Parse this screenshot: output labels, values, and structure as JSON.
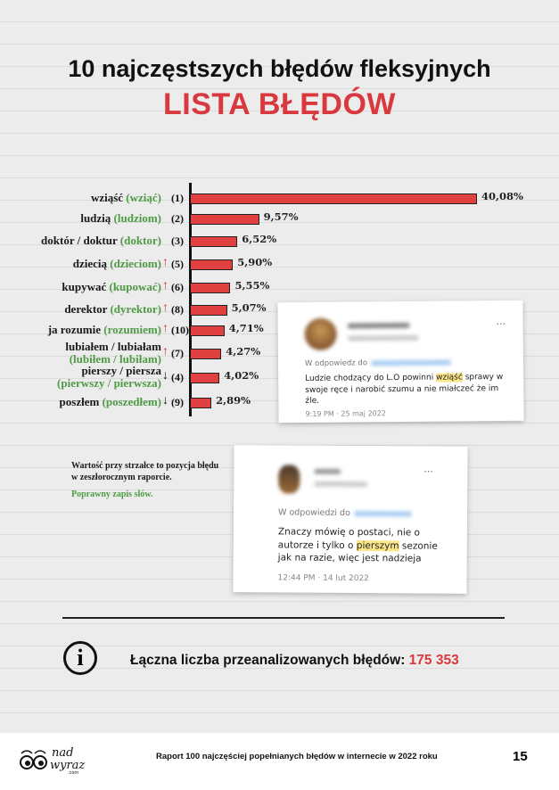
{
  "header": {
    "title": "10 najczęstszych błędów fleksyjnych",
    "subtitle": "LISTA BŁĘDÓW"
  },
  "colors": {
    "accent": "#d8383e",
    "bar": "#e0403f",
    "correct": "#4f9a45",
    "arrow_up": "#d8383e",
    "arrow_down": "#111111",
    "highlight": "#fbe68a"
  },
  "chart_data": {
    "type": "bar",
    "orientation": "horizontal",
    "value_unit": "%",
    "categories": [
      {
        "error": "wziąść",
        "correct": "(wziąć)",
        "position": "(1)",
        "trend": ""
      },
      {
        "error": "ludzią",
        "correct": "(ludziom)",
        "position": "(2)",
        "trend": ""
      },
      {
        "error": "doktór / doktur",
        "correct": "(doktor)",
        "position": "(3)",
        "trend": ""
      },
      {
        "error": "dziecią",
        "correct": "(dzieciom)",
        "position": "(5)",
        "trend": "up"
      },
      {
        "error": "kupywać",
        "correct": "(kupować)",
        "position": "(6)",
        "trend": "up"
      },
      {
        "error": "derektor",
        "correct": "(dyrektor)",
        "position": "(8)",
        "trend": "up"
      },
      {
        "error": "ja rozumie",
        "correct": "(rozumiem)",
        "position": "(10)",
        "trend": "up"
      },
      {
        "error": "lubiałem / lubiałam",
        "correct": "(lubiłem / lubiłam)",
        "position": "(7)",
        "trend": "up"
      },
      {
        "error": "pierszy / piersza",
        "correct": "(pierwszy / pierwsza)",
        "position": "(4)",
        "trend": "down"
      },
      {
        "error": "poszłem",
        "correct": "(poszedłem)",
        "position": "(9)",
        "trend": "down"
      }
    ],
    "values": [
      40.08,
      9.57,
      6.52,
      5.9,
      5.55,
      5.07,
      4.71,
      4.27,
      4.02,
      2.89
    ],
    "value_labels": [
      "40,08%",
      "9,57%",
      "6,52%",
      "5,90%",
      "5,55%",
      "5,07%",
      "4,71%",
      "4,27%",
      "4,02%",
      "2,89%"
    ],
    "xlim": [
      0,
      40.08
    ],
    "grid": false
  },
  "tweets": [
    {
      "reply_label": "W odpowiedz do",
      "text_before": "Ludzie chodzący do L.O powinni ",
      "highlight": "wziąść",
      "text_after": " sprawy w swoje ręce i narobić szumu a nie miałczeć że im źle.",
      "time": "9:19 PM · 25 maj 2022",
      "more": "···"
    },
    {
      "reply_label": "W odpowiedzi do",
      "text_before": "Znaczy mówię o postaci, nie o autorze i tylko o ",
      "highlight": "pierszym",
      "text_after": " sezonie jak na razie, więc jest nadzieja",
      "time": "12:44 PM · 14 lut 2022",
      "more": "···"
    }
  ],
  "legend": {
    "arrow_note": "Wartość przy strzałce to pozycja błędu w zeszłorocznym raporcie.",
    "correct_note": "Poprawny zapis słów."
  },
  "summary": {
    "icon": "info-icon",
    "label": "Łączna liczba przeanalizowanych błędów: ",
    "value": "175 353"
  },
  "footer": {
    "logo": "nadwyraz.com",
    "text": "Raport 100 najczęściej popełnianych błędów w internecie w 2022 roku",
    "page": "15"
  }
}
